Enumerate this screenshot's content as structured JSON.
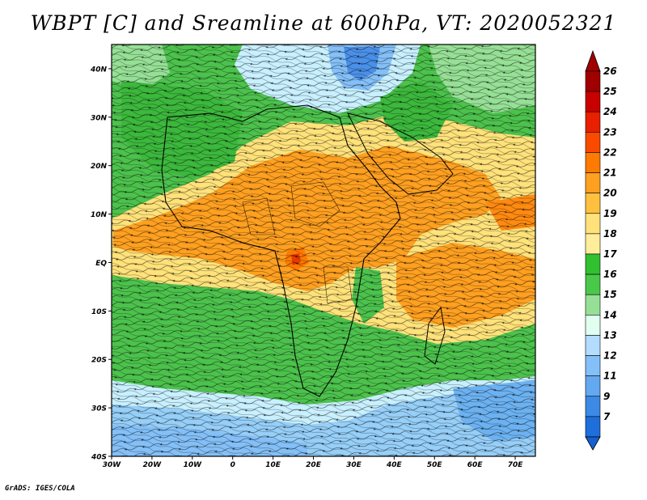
{
  "title": "WBPT [C] and Sreamline at 600hPa, VT: 2020052321",
  "credit": "GrADS: IGES/COLA",
  "map": {
    "lon_range": [
      -30,
      75
    ],
    "lat_range": [
      -40,
      45
    ],
    "lat_ticks": [
      {
        "value": 40,
        "label": "40N"
      },
      {
        "value": 30,
        "label": "30N"
      },
      {
        "value": 20,
        "label": "20N"
      },
      {
        "value": 10,
        "label": "10N"
      },
      {
        "value": 0,
        "label": "EQ"
      },
      {
        "value": -10,
        "label": "10S"
      },
      {
        "value": -20,
        "label": "20S"
      },
      {
        "value": -30,
        "label": "30S"
      },
      {
        "value": -40,
        "label": "40S"
      }
    ],
    "lon_ticks": [
      {
        "value": -30,
        "label": "30W"
      },
      {
        "value": -20,
        "label": "20W"
      },
      {
        "value": -10,
        "label": "10W"
      },
      {
        "value": 0,
        "label": "0"
      },
      {
        "value": 10,
        "label": "10E"
      },
      {
        "value": 20,
        "label": "20E"
      },
      {
        "value": 30,
        "label": "30E"
      },
      {
        "value": 40,
        "label": "40E"
      },
      {
        "value": 50,
        "label": "50E"
      },
      {
        "value": 60,
        "label": "60E"
      },
      {
        "value": 70,
        "label": "70E"
      }
    ]
  },
  "colorbar": {
    "levels": [
      {
        "label": "26",
        "color": "#a00000"
      },
      {
        "label": "25",
        "color": "#c80000"
      },
      {
        "label": "24",
        "color": "#e81f00"
      },
      {
        "label": "23",
        "color": "#fa4a00"
      },
      {
        "label": "22",
        "color": "#ff7a00"
      },
      {
        "label": "21",
        "color": "#ffa020"
      },
      {
        "label": "20",
        "color": "#ffc040"
      },
      {
        "label": "19",
        "color": "#ffe27a"
      },
      {
        "label": "18",
        "color": "#ffee99"
      },
      {
        "label": "17",
        "color": "#30c030"
      },
      {
        "label": "16",
        "color": "#4ac84a"
      },
      {
        "label": "15",
        "color": "#96e096"
      },
      {
        "label": "14",
        "color": "#e0fff0"
      },
      {
        "label": "13",
        "color": "#b4dcff"
      },
      {
        "label": "12",
        "color": "#84c0f8"
      },
      {
        "label": "11",
        "color": "#64a8f0"
      },
      {
        "label": "9",
        "color": "#3c8ae6"
      },
      {
        "label": "7",
        "color": "#1e6edc"
      }
    ],
    "bottom_color": "#1660d0"
  }
}
